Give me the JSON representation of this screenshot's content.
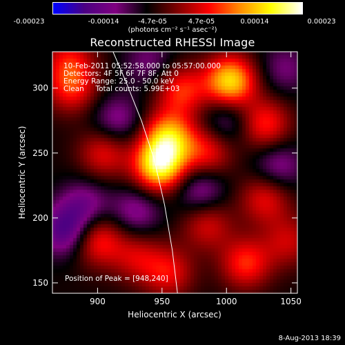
{
  "colorbar": {
    "ticks": [
      "-0.00023",
      "-0.00014",
      "-4.7e-05",
      "4.7e-05",
      "0.00014",
      "0.00023"
    ],
    "units": "(photons cm⁻² s⁻¹ asec⁻²)",
    "colors": [
      "#0000ff",
      "#4b0082",
      "#800080",
      "#000000",
      "#800000",
      "#ff0000",
      "#ff8c00",
      "#ffff00",
      "#ffffff"
    ]
  },
  "chart_data": {
    "type": "heatmap",
    "title": "Reconstructed RHESSI Image",
    "xlabel": "Heliocentric X (arcsec)",
    "ylabel": "Heliocentric Y (arcsec)",
    "xlim": [
      865,
      1055
    ],
    "ylim": [
      142,
      328
    ],
    "xticks": [
      900,
      950,
      1000,
      1050
    ],
    "yticks": [
      150,
      200,
      250,
      300
    ],
    "color_range": [
      -0.00023,
      0.00023
    ],
    "annotations": [
      "10-Feb-2011 05:52:58.000 to 05:57:00.000",
      "Detectors: 4F 5F 6F 7F 8F, Att 0",
      "Energy Range: 25.0 - 50.0 keV",
      "Clean     Total counts: 5.99E+03"
    ],
    "peak_label": "Position of Peak = [948,240]",
    "peak": {
      "x": 948,
      "y": 240
    },
    "limb_curve": [
      [
        962,
        142
      ],
      [
        958,
        175
      ],
      [
        952,
        210
      ],
      [
        944,
        245
      ],
      [
        934,
        275
      ],
      [
        922,
        305
      ],
      [
        912,
        328
      ]
    ],
    "blobs": [
      {
        "x": 948,
        "y": 240,
        "v": 0.00023
      },
      {
        "x": 955,
        "y": 262,
        "v": 0.00018
      },
      {
        "x": 1003,
        "y": 305,
        "v": 0.00021
      },
      {
        "x": 965,
        "y": 298,
        "v": 0.00012
      },
      {
        "x": 985,
        "y": 250,
        "v": 0.00011
      },
      {
        "x": 1030,
        "y": 272,
        "v": 0.00012
      },
      {
        "x": 880,
        "y": 300,
        "v": 0.00011
      },
      {
        "x": 905,
        "y": 250,
        "v": 0.0001
      },
      {
        "x": 900,
        "y": 183,
        "v": 0.00012
      },
      {
        "x": 930,
        "y": 170,
        "v": 8e-05
      },
      {
        "x": 955,
        "y": 158,
        "v": 0.0001
      },
      {
        "x": 985,
        "y": 195,
        "v": 9e-05
      },
      {
        "x": 1015,
        "y": 165,
        "v": 0.00012
      },
      {
        "x": 1030,
        "y": 215,
        "v": 0.0001
      },
      {
        "x": 1048,
        "y": 182,
        "v": 8e-05
      },
      {
        "x": 878,
        "y": 322,
        "v": 9e-05
      },
      {
        "x": 890,
        "y": 210,
        "v": -8e-05
      },
      {
        "x": 875,
        "y": 190,
        "v": -0.00012
      },
      {
        "x": 915,
        "y": 275,
        "v": -8e-05
      },
      {
        "x": 980,
        "y": 222,
        "v": -9e-05
      },
      {
        "x": 1040,
        "y": 240,
        "v": -8e-05
      },
      {
        "x": 930,
        "y": 205,
        "v": -8e-05
      },
      {
        "x": 1000,
        "y": 275,
        "v": -7e-05
      },
      {
        "x": 1045,
        "y": 315,
        "v": -6e-05
      },
      {
        "x": 940,
        "y": 320,
        "v": -6e-05
      }
    ]
  },
  "footer": {
    "date": "8-Aug-2013 18:39"
  }
}
